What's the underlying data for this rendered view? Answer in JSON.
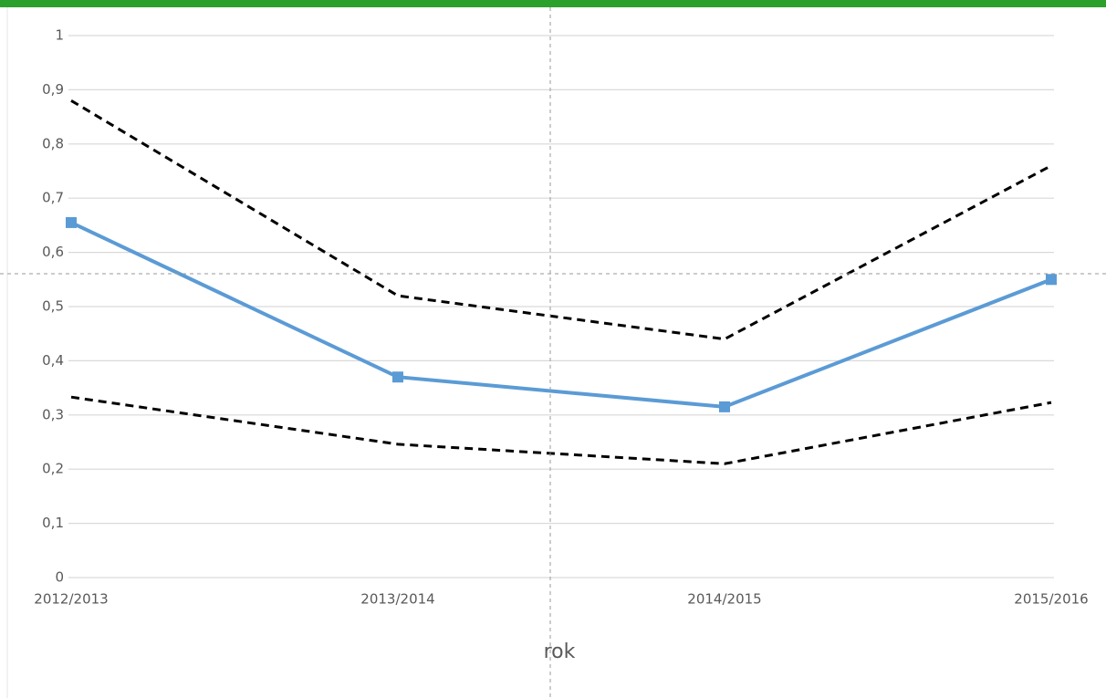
{
  "chart_data": {
    "type": "line",
    "x_label": "rok",
    "categories": [
      "2012/2013",
      "2013/2014",
      "2014/2015",
      "2015/2016"
    ],
    "series": [
      {
        "color": "#5b9bd5",
        "dashed": false,
        "marker": "square",
        "values": [
          0.655,
          0.37,
          0.315,
          0.55
        ]
      },
      {
        "color": "#000000",
        "dashed": true,
        "marker": "none",
        "values": [
          0.88,
          0.52,
          0.44,
          0.76
        ]
      },
      {
        "color": "#000000",
        "dashed": true,
        "marker": "none",
        "values": [
          0.333,
          0.246,
          0.21,
          0.323
        ]
      }
    ],
    "ylim": [
      0,
      1
    ],
    "yticks": [
      0,
      {
        "value": 0.1,
        "label": "0,1"
      },
      {
        "value": 0.2,
        "label": "0,2"
      },
      {
        "value": 0.3,
        "label": "0,3"
      },
      {
        "value": 0.4,
        "label": "0,4"
      },
      {
        "value": 0.5,
        "label": "0,5"
      },
      {
        "value": 0.6,
        "label": "0,6"
      },
      {
        "value": 0.7,
        "label": "0,7"
      },
      {
        "value": 0.8,
        "label": "0,8"
      },
      {
        "value": 0.9,
        "label": "0,9"
      },
      1
    ],
    "grid": true
  }
}
